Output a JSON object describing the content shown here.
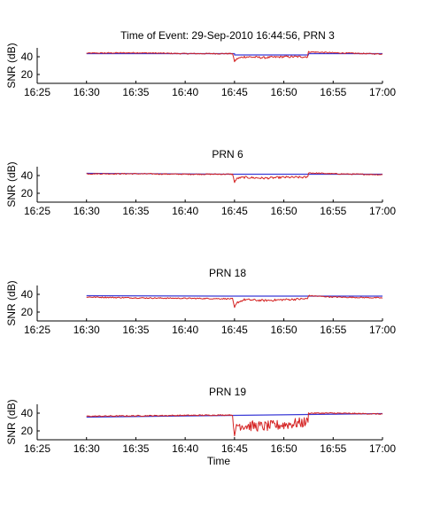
{
  "chart_data": [
    {
      "type": "line",
      "title": "Time of Event: 29-Sep-2010 16:44:56, PRN 3",
      "xlabel": "",
      "ylabel": "SNR (dB)",
      "xlim": [
        "16:25",
        "17:00"
      ],
      "ylim": [
        10,
        50
      ],
      "xticks": [
        "16:25",
        "16:30",
        "16:35",
        "16:40",
        "16:45",
        "16:50",
        "16:55",
        "17:00"
      ],
      "yticks": [
        20,
        40
      ],
      "series": [
        {
          "color": "#3b3bd6",
          "x": [
            "16:30",
            "16:45",
            "16:45",
            "16:52.5",
            "16:52.5",
            "17:00"
          ],
          "y": [
            43.5,
            43.5,
            42,
            42,
            43.5,
            43.5
          ]
        },
        {
          "color": "#d42020",
          "x": [
            "16:30",
            "16:35",
            "16:40",
            "16:44.8",
            "16:45",
            "16:45.3",
            "16:46",
            "16:48",
            "16:50",
            "16:52.4",
            "16:52.5",
            "16:55",
            "17:00"
          ],
          "y": [
            44,
            44.5,
            43.5,
            43.5,
            35,
            38,
            40,
            39,
            40,
            40,
            45.5,
            44.5,
            43
          ]
        }
      ]
    },
    {
      "type": "line",
      "title": "PRN 6",
      "xlabel": "",
      "ylabel": "SNR (dB)",
      "xlim": [
        "16:25",
        "17:00"
      ],
      "ylim": [
        10,
        50
      ],
      "xticks": [
        "16:25",
        "16:30",
        "16:35",
        "16:40",
        "16:45",
        "16:50",
        "16:55",
        "17:00"
      ],
      "yticks": [
        20,
        40
      ],
      "series": [
        {
          "color": "#3b3bd6",
          "x": [
            "16:30",
            "16:45",
            "16:52.5",
            "17:00"
          ],
          "y": [
            42.5,
            41.5,
            41.5,
            41.5
          ]
        },
        {
          "color": "#d42020",
          "x": [
            "16:30",
            "16:35",
            "16:40",
            "16:44.8",
            "16:45",
            "16:45.3",
            "16:46",
            "16:48",
            "16:50",
            "16:52.4",
            "16:52.5",
            "16:55",
            "17:00"
          ],
          "y": [
            42,
            42,
            41.5,
            41.5,
            33,
            37,
            38,
            37,
            38,
            38,
            43,
            42,
            41
          ]
        }
      ]
    },
    {
      "type": "line",
      "title": "PRN 18",
      "xlabel": "",
      "ylabel": "SNR (dB)",
      "xlim": [
        "16:25",
        "17:00"
      ],
      "ylim": [
        10,
        50
      ],
      "xticks": [
        "16:25",
        "16:30",
        "16:35",
        "16:40",
        "16:45",
        "16:50",
        "16:55",
        "17:00"
      ],
      "yticks": [
        20,
        40
      ],
      "series": [
        {
          "color": "#3b3bd6",
          "x": [
            "16:30",
            "16:45",
            "16:52.5",
            "17:00"
          ],
          "y": [
            38.5,
            38,
            38,
            38
          ]
        },
        {
          "color": "#d42020",
          "x": [
            "16:30",
            "16:35",
            "16:40",
            "16:44.8",
            "16:45",
            "16:45.3",
            "16:46",
            "16:48",
            "16:50",
            "16:52.4",
            "16:52.5",
            "16:55",
            "17:00"
          ],
          "y": [
            37,
            36,
            35.5,
            35,
            25,
            31,
            34,
            33,
            34,
            35,
            38.5,
            37,
            36
          ]
        }
      ]
    },
    {
      "type": "line",
      "title": "PRN 19",
      "xlabel": "Time",
      "ylabel": "SNR (dB)",
      "xlim": [
        "16:25",
        "17:00"
      ],
      "ylim": [
        10,
        50
      ],
      "xticks": [
        "16:25",
        "16:30",
        "16:35",
        "16:40",
        "16:45",
        "16:50",
        "16:55",
        "17:00"
      ],
      "yticks": [
        20,
        40
      ],
      "series": [
        {
          "color": "#3b3bd6",
          "x": [
            "16:30",
            "16:45",
            "16:52.5",
            "17:00"
          ],
          "y": [
            35.5,
            37.5,
            38.5,
            39.5
          ]
        },
        {
          "color": "#d42020",
          "x": [
            "16:30",
            "16:35",
            "16:40",
            "16:44.8",
            "16:45",
            "16:45.2",
            "16:46",
            "16:48",
            "16:50",
            "16:52.4",
            "16:52.5",
            "16:55",
            "17:00"
          ],
          "y": [
            36.5,
            37,
            37.5,
            38,
            10,
            27,
            26,
            25,
            27,
            30,
            40,
            40,
            39
          ]
        }
      ]
    }
  ]
}
